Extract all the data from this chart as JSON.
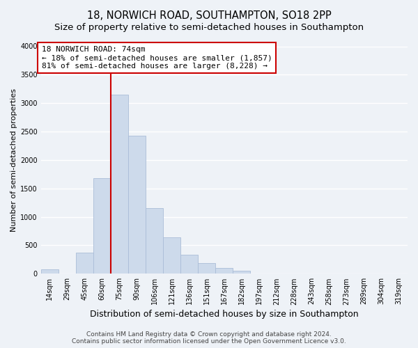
{
  "title": "18, NORWICH ROAD, SOUTHAMPTON, SO18 2PP",
  "subtitle": "Size of property relative to semi-detached houses in Southampton",
  "xlabel": "Distribution of semi-detached houses by size in Southampton",
  "ylabel": "Number of semi-detached properties",
  "bin_labels": [
    "14sqm",
    "29sqm",
    "45sqm",
    "60sqm",
    "75sqm",
    "90sqm",
    "106sqm",
    "121sqm",
    "136sqm",
    "151sqm",
    "167sqm",
    "182sqm",
    "197sqm",
    "212sqm",
    "228sqm",
    "243sqm",
    "258sqm",
    "273sqm",
    "289sqm",
    "304sqm",
    "319sqm"
  ],
  "bar_values": [
    75,
    0,
    365,
    1680,
    3150,
    2430,
    1160,
    640,
    330,
    185,
    105,
    55,
    0,
    0,
    0,
    0,
    0,
    0,
    0,
    0,
    0
  ],
  "bar_color": "#cddaeb",
  "bar_edge_color": "#aabdd8",
  "property_bin_index": 4,
  "vline_color": "#cc0000",
  "annotation_line1": "18 NORWICH ROAD: 74sqm",
  "annotation_line2": "← 18% of semi-detached houses are smaller (1,857)",
  "annotation_line3": "81% of semi-detached houses are larger (8,228) →",
  "annotation_box_color": "#ffffff",
  "annotation_box_edge": "#cc0000",
  "ylim": [
    0,
    4000
  ],
  "yticks": [
    0,
    500,
    1000,
    1500,
    2000,
    2500,
    3000,
    3500,
    4000
  ],
  "background_color": "#eef2f7",
  "grid_color": "#ffffff",
  "footer_text": "Contains HM Land Registry data © Crown copyright and database right 2024.\nContains public sector information licensed under the Open Government Licence v3.0.",
  "title_fontsize": 10.5,
  "subtitle_fontsize": 9.5,
  "xlabel_fontsize": 9,
  "ylabel_fontsize": 8,
  "tick_fontsize": 7,
  "annotation_fontsize": 8,
  "footer_fontsize": 6.5
}
